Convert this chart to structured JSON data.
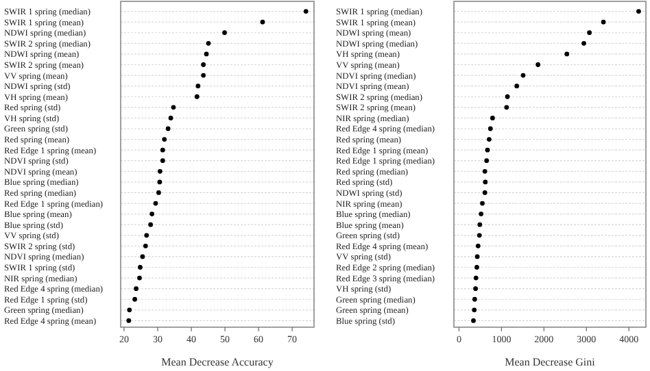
{
  "chart_data": [
    {
      "type": "scatter",
      "orientation": "horizontal",
      "xlabel": "Mean Decrease Accuracy",
      "marker": "circle",
      "grid": "y",
      "color": "#000000",
      "categories": [
        "SWIR 1 spring (median)",
        "SWIR 1 spring (mean)",
        "NDWI spring (median)",
        "SWIR 2 spring (median)",
        "NDWI spring (mean)",
        "SWIR 2 spring (mean)",
        "VV spring (mean)",
        "NDWI spring (std)",
        "VH spring (mean)",
        "Red spring (std)",
        "VH spring (std)",
        "Green spring (std)",
        "Red spring (mean)",
        "Red Edge 1 spring (mean)",
        "NDVI spring (std)",
        "NDVI spring (mean)",
        "Blue spring (median)",
        "Red spring (median)",
        "Red Edge 1 spring (median)",
        "Blue spring (mean)",
        "Blue spring (std)",
        "VV spring (std)",
        "SWIR 2 spring (std)",
        "NDVI spring (median)",
        "SWIR 1 spring (std)",
        "NIR spring (median)",
        "Red Edge 4 spring (median)",
        "Red Edge 1 spring (std)",
        "Green spring (median)",
        "Red Edge 4 spring (mean)"
      ],
      "values": [
        74.1,
        61.2,
        49.9,
        45.1,
        44.5,
        43.6,
        43.6,
        42.0,
        41.7,
        34.7,
        33.9,
        33.1,
        32.0,
        31.5,
        31.5,
        30.7,
        30.6,
        30.3,
        29.4,
        28.3,
        27.9,
        26.7,
        26.4,
        25.5,
        24.8,
        24.6,
        23.6,
        23.2,
        21.6,
        21.4
      ],
      "xlim": [
        19,
        76.5
      ],
      "xticks": [
        20,
        30,
        40,
        50,
        60,
        70
      ]
    },
    {
      "type": "scatter",
      "orientation": "horizontal",
      "xlabel": "Mean Decrease Gini",
      "marker": "circle",
      "grid": "y",
      "color": "#000000",
      "categories": [
        "SWIR 1 spring (median)",
        "SWIR 1 spring (mean)",
        "NDWI spring (mean)",
        "NDWI spring (median)",
        "VH spring (mean)",
        "VV spring (mean)",
        "NDVI spring (median)",
        "NDVI spring (mean)",
        "SWIR 2 spring (median)",
        "SWIR 2 spring (mean)",
        "NIR spring (median)",
        "Red Edge 4 spring (median)",
        "Red spring (mean)",
        "Red Edge 1 spring (mean)",
        "Red Edge 1 spring (median)",
        "Red spring (median)",
        "Red spring (std)",
        "NDWI spring (std)",
        "NIR spring (mean)",
        "Blue spring (median)",
        "Blue spring (mean)",
        "Green spring (std)",
        "Red Edge 4 spring (mean)",
        "VV spring (std)",
        "Red Edge 2 spring (median)",
        "Red Edge 3 spring (median)",
        "VH spring (std)",
        "Green spring (median)",
        "Green spring (mean)",
        "Blue spring (std)"
      ],
      "values": [
        4230,
        3400,
        3070,
        2940,
        2540,
        1860,
        1510,
        1360,
        1140,
        1120,
        790,
        740,
        710,
        670,
        650,
        610,
        620,
        610,
        550,
        520,
        490,
        480,
        450,
        430,
        420,
        400,
        390,
        370,
        360,
        340
      ],
      "xlim": [
        -120,
        4400
      ],
      "xticks": [
        0,
        1000,
        2000,
        3000,
        4000
      ]
    }
  ]
}
